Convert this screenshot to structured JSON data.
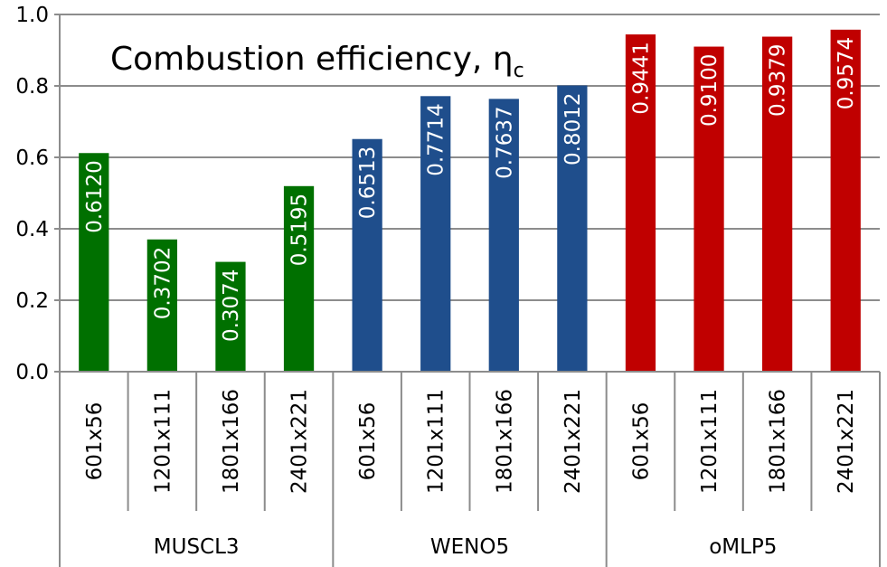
{
  "chart_data": {
    "type": "bar",
    "title": "Combustion efficiency, ",
    "title_symbol": "η",
    "title_subscript": "c",
    "ylim": [
      0,
      1.0
    ],
    "yticks": [
      "0.0",
      "0.2",
      "0.4",
      "0.6",
      "0.8",
      "1.0"
    ],
    "grid": true,
    "groups": [
      {
        "name": "MUSCL3",
        "color": "#007000",
        "categories": [
          "601x56",
          "1201x111",
          "1801x166",
          "2401x221"
        ],
        "values": [
          0.612,
          0.3702,
          0.3074,
          0.5195
        ],
        "labels": [
          "0.6120",
          "0.3702",
          "0.3074",
          "0.5195"
        ]
      },
      {
        "name": "WENO5",
        "color": "#1F4E8C",
        "categories": [
          "601x56",
          "1201x111",
          "1801x166",
          "2401x221"
        ],
        "values": [
          0.6513,
          0.7714,
          0.7637,
          0.8012
        ],
        "labels": [
          "0.6513",
          "0.7714",
          "0.7637",
          "0.8012"
        ]
      },
      {
        "name": "oMLP5",
        "color": "#C00000",
        "categories": [
          "601x56",
          "1201x111",
          "1801x166",
          "2401x221"
        ],
        "values": [
          0.9441,
          0.91,
          0.9379,
          0.9574
        ],
        "labels": [
          "0.9441",
          "0.9100",
          "0.9379",
          "0.9574"
        ]
      }
    ]
  }
}
